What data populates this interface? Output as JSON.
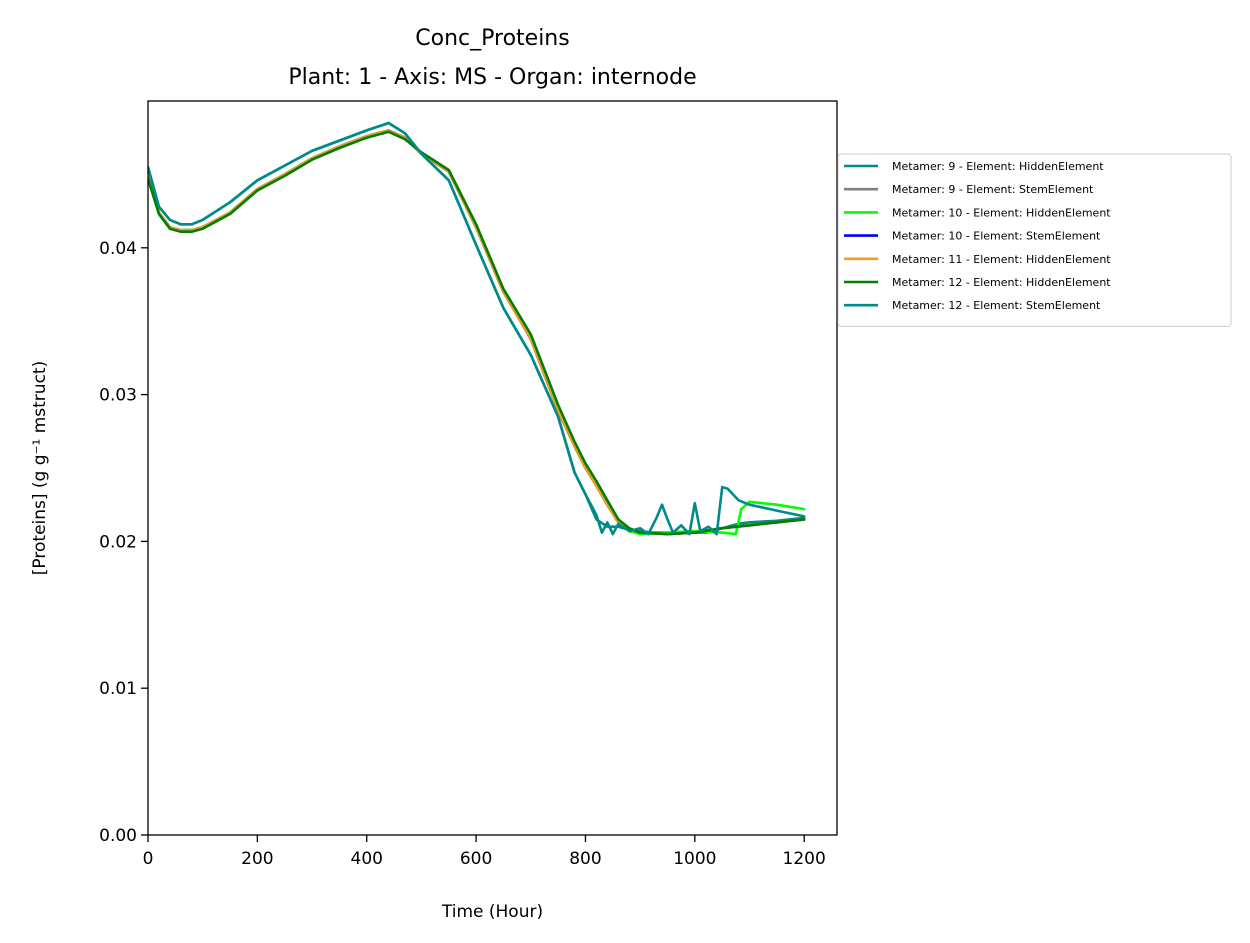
{
  "chart_data": {
    "type": "line",
    "title": "Conc_Proteins",
    "subtitle": "Plant: 1 - Axis: MS - Organ: internode",
    "xlabel": "Time (Hour)",
    "ylabel": "[Proteins] (g g⁻¹ mstruct)",
    "xlim": [
      0,
      1260
    ],
    "ylim": [
      0,
      0.05
    ],
    "xticks": [
      0,
      200,
      400,
      600,
      800,
      1000,
      1200
    ],
    "xtick_labels": [
      "0",
      "200",
      "400",
      "600",
      "800",
      "1000",
      "1200"
    ],
    "yticks": [
      0,
      0.01,
      0.02,
      0.03,
      0.04
    ],
    "ytick_labels": [
      "0.00",
      "0.01",
      "0.02",
      "0.03",
      "0.04"
    ],
    "grid": false,
    "legend_position": "outside-right-top",
    "series": [
      {
        "name": "Metamer: 9 - Element: HiddenElement",
        "color": "#008b8b",
        "x": [
          0,
          20,
          40,
          60,
          80,
          100,
          150,
          200,
          250,
          300,
          350,
          400,
          440,
          470,
          500,
          550,
          600,
          650,
          700,
          750,
          780,
          800,
          820,
          840,
          860,
          880,
          900,
          920,
          940,
          960,
          980,
          1000,
          1020,
          1040,
          1060,
          1080,
          1100,
          1150,
          1200
        ],
        "y": [
          0.0455,
          0.0428,
          0.0419,
          0.0416,
          0.0416,
          0.0419,
          0.0431,
          0.0446,
          0.0456,
          0.0466,
          0.0473,
          0.048,
          0.0485,
          0.0478,
          0.0464,
          0.0446,
          0.0402,
          0.0359,
          0.0327,
          0.0285,
          0.0247,
          0.0232,
          0.0215,
          0.021,
          0.021,
          0.0208,
          0.0207,
          0.0206,
          0.0206,
          0.0206,
          0.0206,
          0.0206,
          0.0206,
          0.0208,
          0.021,
          0.0212,
          0.0213,
          0.0214,
          0.0216
        ]
      },
      {
        "name": "Metamer: 9 - Element: StemElement",
        "color": "#808080",
        "x": [
          0,
          20,
          40,
          60,
          80,
          100,
          150,
          200,
          250,
          300,
          350,
          400,
          440,
          470,
          500,
          550,
          600,
          650,
          700,
          750,
          780,
          800,
          820,
          840,
          860,
          880,
          900,
          950,
          1000,
          1050,
          1100,
          1150,
          1200
        ],
        "y": [
          0.0448,
          0.0424,
          0.0414,
          0.0412,
          0.0412,
          0.0414,
          0.0424,
          0.044,
          0.045,
          0.0461,
          0.0469,
          0.0476,
          0.048,
          0.0475,
          0.0464,
          0.0452,
          0.0414,
          0.037,
          0.0338,
          0.0289,
          0.0265,
          0.025,
          0.0238,
          0.0225,
          0.0213,
          0.0208,
          0.0206,
          0.0205,
          0.0206,
          0.0209,
          0.0211,
          0.0213,
          0.0215
        ]
      },
      {
        "name": "Metamer: 10 - Element: HiddenElement",
        "color": "#00ff00",
        "x": [
          0,
          20,
          40,
          60,
          80,
          100,
          150,
          200,
          250,
          300,
          350,
          400,
          440,
          470,
          500,
          550,
          600,
          650,
          700,
          750,
          780,
          800,
          820,
          840,
          860,
          880,
          900,
          950,
          1000,
          1050,
          1075,
          1085,
          1100,
          1150,
          1200
        ],
        "y": [
          0.0448,
          0.0424,
          0.0414,
          0.0412,
          0.0412,
          0.0414,
          0.0424,
          0.044,
          0.045,
          0.0461,
          0.0469,
          0.0476,
          0.048,
          0.0475,
          0.0464,
          0.0452,
          0.0414,
          0.037,
          0.0338,
          0.0289,
          0.0265,
          0.025,
          0.0238,
          0.0225,
          0.0213,
          0.0207,
          0.0205,
          0.0206,
          0.0207,
          0.0206,
          0.0205,
          0.0222,
          0.0227,
          0.0225,
          0.0222
        ]
      },
      {
        "name": "Metamer: 10 - Element: StemElement",
        "color": "#0000ff",
        "x": [
          0,
          20,
          40,
          60,
          80,
          100,
          150,
          200,
          250,
          300,
          350,
          400,
          440,
          470,
          500,
          550,
          600,
          650,
          700,
          750,
          780,
          800,
          820,
          840,
          860,
          880,
          900,
          950,
          1000,
          1050,
          1100,
          1150,
          1200
        ],
        "y": [
          0.0448,
          0.0424,
          0.0414,
          0.0412,
          0.0412,
          0.0414,
          0.0424,
          0.044,
          0.045,
          0.0461,
          0.0469,
          0.0476,
          0.048,
          0.0475,
          0.0464,
          0.0452,
          0.0414,
          0.037,
          0.0338,
          0.0289,
          0.0265,
          0.025,
          0.0238,
          0.0225,
          0.0213,
          0.0208,
          0.0206,
          0.0205,
          0.0206,
          0.0209,
          0.0211,
          0.0213,
          0.0215
        ]
      },
      {
        "name": "Metamer: 11 - Element: HiddenElement",
        "color": "#f39c1f",
        "x": [
          0,
          20,
          40,
          60,
          80,
          100,
          150,
          200,
          250,
          300,
          350,
          400,
          440,
          470,
          500,
          550,
          600,
          650,
          700,
          750,
          780,
          800,
          820,
          840,
          860,
          880,
          900,
          950,
          1000,
          1050,
          1100,
          1150,
          1200
        ],
        "y": [
          0.0448,
          0.0424,
          0.0414,
          0.0412,
          0.0412,
          0.0414,
          0.0424,
          0.044,
          0.045,
          0.0461,
          0.0469,
          0.0476,
          0.048,
          0.0475,
          0.0464,
          0.0452,
          0.0414,
          0.037,
          0.0338,
          0.0289,
          0.0265,
          0.025,
          0.0238,
          0.0225,
          0.0213,
          0.0208,
          0.0206,
          0.0205,
          0.0206,
          0.0209,
          0.0211,
          0.0213,
          0.0215
        ]
      },
      {
        "name": "Metamer: 12 - Element: HiddenElement",
        "color": "#008000",
        "x": [
          0,
          20,
          40,
          60,
          80,
          100,
          150,
          200,
          250,
          300,
          350,
          400,
          440,
          470,
          500,
          550,
          600,
          650,
          700,
          750,
          780,
          800,
          820,
          840,
          860,
          880,
          900,
          950,
          1000,
          1050,
          1100,
          1150,
          1200
        ],
        "y": [
          0.0447,
          0.0423,
          0.0413,
          0.0411,
          0.0411,
          0.0413,
          0.0423,
          0.0439,
          0.0449,
          0.046,
          0.0468,
          0.0475,
          0.0479,
          0.0474,
          0.0465,
          0.0453,
          0.0416,
          0.0372,
          0.0341,
          0.0293,
          0.0268,
          0.0253,
          0.0241,
          0.0228,
          0.0215,
          0.0209,
          0.0206,
          0.0205,
          0.0206,
          0.0209,
          0.0211,
          0.0213,
          0.0215
        ]
      },
      {
        "name": "Metamer: 12 - Element: StemElement",
        "color": "#008b8b",
        "x": [
          0,
          20,
          40,
          60,
          80,
          100,
          150,
          200,
          250,
          300,
          350,
          400,
          440,
          470,
          500,
          550,
          600,
          650,
          700,
          750,
          780,
          800,
          820,
          830,
          840,
          850,
          860,
          880,
          900,
          915,
          930,
          940,
          950,
          960,
          975,
          990,
          1000,
          1010,
          1025,
          1040,
          1050,
          1060,
          1080,
          1100,
          1150,
          1200
        ],
        "y": [
          0.0455,
          0.0428,
          0.0419,
          0.0416,
          0.0416,
          0.0419,
          0.0431,
          0.0446,
          0.0456,
          0.0466,
          0.0473,
          0.048,
          0.0485,
          0.0478,
          0.0464,
          0.0446,
          0.0402,
          0.0359,
          0.0327,
          0.0285,
          0.0247,
          0.0232,
          0.0218,
          0.0206,
          0.0213,
          0.0205,
          0.0212,
          0.0207,
          0.0209,
          0.0205,
          0.0216,
          0.0225,
          0.0215,
          0.0206,
          0.0211,
          0.0205,
          0.0226,
          0.0207,
          0.021,
          0.0205,
          0.0237,
          0.0236,
          0.0228,
          0.0225,
          0.0221,
          0.0217
        ]
      }
    ]
  }
}
